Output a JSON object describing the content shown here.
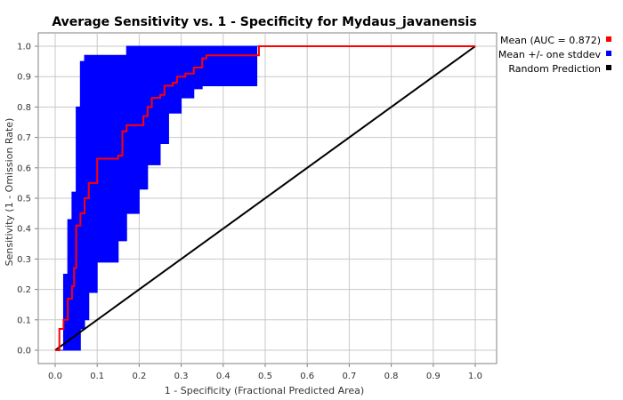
{
  "chart_data": {
    "type": "line",
    "title": "Average Sensitivity vs. 1 - Specificity for Mydaus_javanensis",
    "xlabel": "1 - Specificity (Fractional Predicted Area)",
    "ylabel": "Sensitivity (1 - Omission Rate)",
    "xlim": [
      0,
      1
    ],
    "ylim": [
      0,
      1
    ],
    "x_ticks": [
      "0.0",
      "0.1",
      "0.2",
      "0.3",
      "0.4",
      "0.5",
      "0.6",
      "0.7",
      "0.8",
      "0.9",
      "1.0"
    ],
    "y_ticks": [
      "0.0",
      "0.1",
      "0.2",
      "0.3",
      "0.4",
      "0.5",
      "0.6",
      "0.7",
      "0.8",
      "0.9",
      "1.0"
    ],
    "grid": true,
    "legend_position": "right",
    "series": [
      {
        "name": "Mean (AUC = 0.872)",
        "color": "#ff0000",
        "x": [
          0.0,
          0.01,
          0.02,
          0.03,
          0.04,
          0.045,
          0.05,
          0.06,
          0.07,
          0.08,
          0.1,
          0.15,
          0.16,
          0.17,
          0.21,
          0.22,
          0.23,
          0.25,
          0.26,
          0.28,
          0.29,
          0.31,
          0.33,
          0.35,
          0.36,
          0.37,
          0.48,
          0.485,
          0.5,
          1.0
        ],
        "y": [
          0.0,
          0.07,
          0.1,
          0.17,
          0.21,
          0.27,
          0.41,
          0.45,
          0.5,
          0.55,
          0.63,
          0.64,
          0.72,
          0.74,
          0.77,
          0.8,
          0.83,
          0.84,
          0.87,
          0.88,
          0.9,
          0.91,
          0.93,
          0.96,
          0.97,
          0.97,
          0.97,
          1.0,
          1.0,
          1.0
        ]
      },
      {
        "name": "Mean +/- one stddev",
        "color": "#0000ff",
        "type": "band",
        "x": [
          0.0,
          0.02,
          0.03,
          0.04,
          0.05,
          0.06,
          0.07,
          0.08,
          0.1,
          0.15,
          0.17,
          0.2,
          0.22,
          0.25,
          0.27,
          0.3,
          0.33,
          0.35,
          0.36,
          0.48,
          0.49,
          1.0
        ],
        "upper": [
          0.0,
          0.25,
          0.43,
          0.52,
          0.8,
          0.95,
          0.97,
          0.97,
          0.97,
          0.97,
          1.0,
          1.0,
          1.0,
          1.0,
          1.0,
          1.0,
          1.0,
          1.0,
          1.0,
          1.0,
          1.0,
          1.0
        ],
        "lower": [
          0.0,
          0.0,
          0.0,
          0.0,
          0.0,
          0.0,
          0.07,
          0.1,
          0.19,
          0.29,
          0.36,
          0.45,
          0.53,
          0.61,
          0.68,
          0.78,
          0.83,
          0.86,
          0.87,
          0.87,
          1.0,
          1.0
        ]
      },
      {
        "name": "Random Prediction",
        "color": "#000000",
        "x": [
          0.0,
          1.0
        ],
        "y": [
          0.0,
          1.0
        ]
      }
    ]
  }
}
